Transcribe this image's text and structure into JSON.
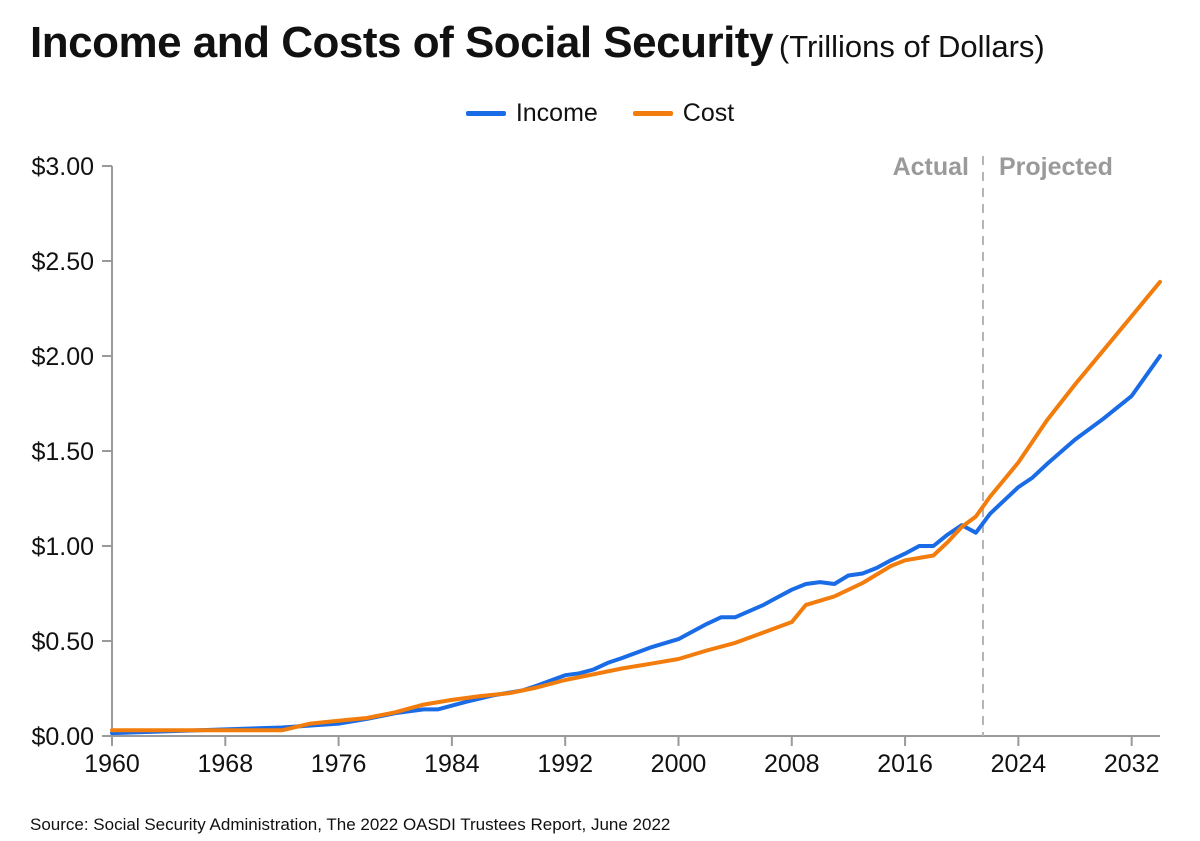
{
  "header": {
    "title": "Income and Costs of Social Security",
    "subtitle": "(Trillions of Dollars)"
  },
  "source": "Source: Social Security Administration, The 2022 OASDI Trustees Report, June 2022",
  "colors": {
    "income": "#1a6be6",
    "cost": "#f27c0c",
    "axis": "#9a9a9a",
    "divider": "#b5b5b5",
    "period_label": "#9a9a9a"
  },
  "chart_data": {
    "type": "line",
    "title": "Income and Costs of Social Security",
    "subtitle": "(Trillions of Dollars)",
    "xlabel": "",
    "ylabel": "",
    "xlim": [
      1960,
      2034
    ],
    "ylim": [
      0,
      3.0
    ],
    "xticks": [
      1960,
      1968,
      1976,
      1984,
      1992,
      2000,
      2008,
      2016,
      2024,
      2032
    ],
    "yticks": [
      0,
      0.5,
      1.0,
      1.5,
      2.0,
      2.5,
      3.0
    ],
    "ytick_labels": [
      "$0.00",
      "$0.50",
      "$1.00",
      "$1.50",
      "$2.00",
      "$2.50",
      "$3.00"
    ],
    "grid": false,
    "legend_position": "top-center",
    "divider": {
      "x": 2021.5,
      "left_label": "Actual",
      "right_label": "Projected"
    },
    "series": [
      {
        "name": "Income",
        "x": [
          1960,
          1964,
          1968,
          1972,
          1976,
          1978,
          1980,
          1982,
          1983,
          1985,
          1987,
          1989,
          1990,
          1992,
          1993,
          1994,
          1995,
          1996,
          1998,
          2000,
          2002,
          2003,
          2004,
          2006,
          2007,
          2008,
          2009,
          2010,
          2011,
          2012,
          2013,
          2014,
          2015,
          2016,
          2017,
          2018,
          2019,
          2020,
          2021,
          2022,
          2023,
          2024,
          2025,
          2026,
          2028,
          2030,
          2032,
          2034
        ],
        "y": [
          0.015,
          0.025,
          0.035,
          0.045,
          0.065,
          0.09,
          0.12,
          0.14,
          0.14,
          0.18,
          0.215,
          0.24,
          0.265,
          0.32,
          0.33,
          0.35,
          0.385,
          0.41,
          0.465,
          0.51,
          0.59,
          0.625,
          0.625,
          0.69,
          0.73,
          0.77,
          0.8,
          0.81,
          0.8,
          0.845,
          0.855,
          0.885,
          0.925,
          0.96,
          1.0,
          1.0,
          1.06,
          1.11,
          1.07,
          1.17,
          1.24,
          1.31,
          1.36,
          1.43,
          1.56,
          1.67,
          1.79,
          2.0
        ]
      },
      {
        "name": "Cost",
        "x": [
          1960,
          1964,
          1968,
          1972,
          1974,
          1976,
          1978,
          1980,
          1982,
          1984,
          1986,
          1988,
          1990,
          1992,
          1994,
          1996,
          1998,
          2000,
          2002,
          2004,
          2006,
          2008,
          2009,
          2011,
          2013,
          2015,
          2016,
          2018,
          2019,
          2020,
          2021,
          2022,
          2024,
          2026,
          2028,
          2030,
          2032,
          2034
        ],
        "y": [
          0.03,
          0.03,
          0.03,
          0.03,
          0.065,
          0.08,
          0.095,
          0.125,
          0.165,
          0.19,
          0.21,
          0.225,
          0.255,
          0.295,
          0.325,
          0.355,
          0.38,
          0.405,
          0.45,
          0.49,
          0.545,
          0.6,
          0.69,
          0.735,
          0.805,
          0.895,
          0.925,
          0.95,
          1.02,
          1.1,
          1.155,
          1.26,
          1.44,
          1.66,
          1.85,
          2.03,
          2.21,
          2.39
        ]
      }
    ]
  }
}
